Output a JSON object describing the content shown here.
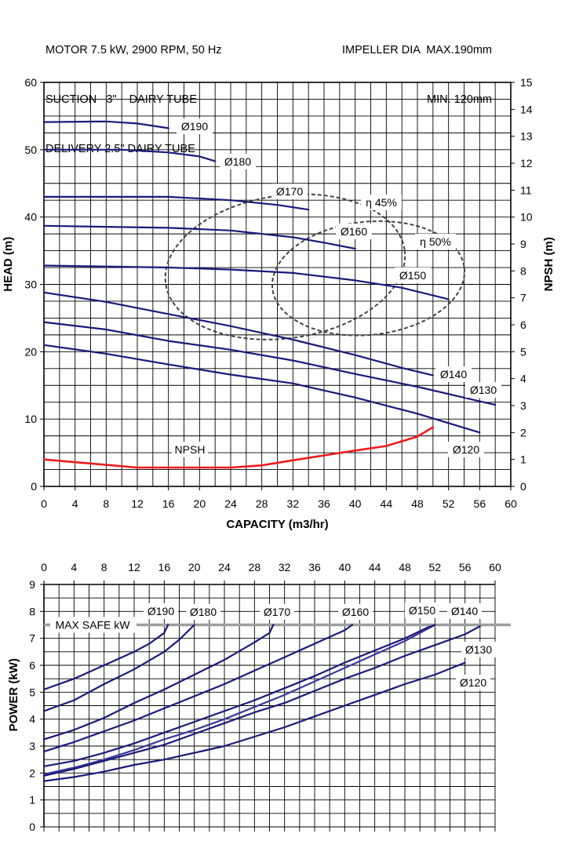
{
  "header": {
    "left": [
      "MOTOR 7.5 kW, 2900 RPM, 50 Hz",
      "SUCTION   3\"    DAIRY TUBE",
      "DELIVERY 2.5\" DAIRY TUBE"
    ],
    "right": [
      "IMPELLER DIA  MAX.190mm",
      "MIN. 120mm"
    ]
  },
  "chart_data": [
    {
      "type": "line",
      "xlabel": "CAPACITY (m3/hr)",
      "ylabel": "HEAD (m)",
      "y2label": "NPSH (m)",
      "xlim": [
        0,
        60
      ],
      "ylim": [
        0,
        60
      ],
      "y2lim": [
        0,
        15
      ],
      "x_ticks": [
        "0",
        "4",
        "8",
        "12",
        "16",
        "20",
        "24",
        "28",
        "32",
        "36",
        "40",
        "44",
        "48",
        "52",
        "56",
        "60"
      ],
      "y_ticks": [
        "0",
        "10",
        "20",
        "30",
        "40",
        "50",
        "60"
      ],
      "y2_ticks": [
        "0",
        "1",
        "2",
        "3",
        "4",
        "5",
        "6",
        "7",
        "8",
        "9",
        "10",
        "11",
        "12",
        "13",
        "14",
        "15"
      ],
      "grid": true,
      "series": [
        {
          "name": "Ø190",
          "color": "#1a1a7a",
          "points": [
            [
              0,
              54.1
            ],
            [
              8,
              54.2
            ],
            [
              12,
              53.9
            ],
            [
              16,
              53.2
            ]
          ]
        },
        {
          "name": "Ø180",
          "color": "#1a1a7a",
          "points": [
            [
              0,
              50.0
            ],
            [
              10,
              50.0
            ],
            [
              16,
              49.6
            ],
            [
              20,
              49.0
            ],
            [
              22,
              48.3
            ]
          ]
        },
        {
          "name": "Ø170",
          "color": "#1a1a7a",
          "points": [
            [
              0,
              43.0
            ],
            [
              16,
              43.0
            ],
            [
              24,
              42.5
            ],
            [
              30,
              41.8
            ],
            [
              34,
              41.1
            ]
          ]
        },
        {
          "name": "Ø160",
          "color": "#1a1a7a",
          "points": [
            [
              0,
              38.7
            ],
            [
              16,
              38.4
            ],
            [
              24,
              38.0
            ],
            [
              32,
              37.0
            ],
            [
              36,
              36.2
            ],
            [
              40,
              35.3
            ]
          ]
        },
        {
          "name": "Ø150",
          "color": "#1a1a7a",
          "points": [
            [
              0,
              32.8
            ],
            [
              16,
              32.5
            ],
            [
              24,
              32.2
            ],
            [
              32,
              31.7
            ],
            [
              40,
              30.6
            ],
            [
              46,
              29.5
            ],
            [
              52,
              27.8
            ]
          ]
        },
        {
          "name": "Ø140",
          "color": "#1a1a7a",
          "points": [
            [
              0,
              28.8
            ],
            [
              8,
              27.4
            ],
            [
              16,
              25.6
            ],
            [
              24,
              23.8
            ],
            [
              32,
              21.8
            ],
            [
              40,
              19.5
            ],
            [
              46,
              17.6
            ],
            [
              50,
              16.5
            ]
          ]
        },
        {
          "name": "Ø130",
          "color": "#1a1a7a",
          "points": [
            [
              0,
              24.4
            ],
            [
              8,
              23.3
            ],
            [
              16,
              21.6
            ],
            [
              24,
              20.3
            ],
            [
              32,
              18.7
            ],
            [
              40,
              16.7
            ],
            [
              48,
              14.8
            ],
            [
              58,
              12.1
            ]
          ]
        },
        {
          "name": "Ø120",
          "color": "#1a1a7a",
          "points": [
            [
              0,
              21.0
            ],
            [
              8,
              19.7
            ],
            [
              16,
              18.1
            ],
            [
              24,
              16.6
            ],
            [
              32,
              15.3
            ],
            [
              40,
              13.2
            ],
            [
              48,
              10.8
            ],
            [
              56,
              8.0
            ]
          ]
        },
        {
          "name": "NPSH",
          "axis": "right",
          "color": "#ee1c1c",
          "points": [
            [
              0,
              1.0
            ],
            [
              6,
              0.85
            ],
            [
              12,
              0.7
            ],
            [
              16,
              0.7
            ],
            [
              24,
              0.7
            ],
            [
              28,
              0.78
            ],
            [
              32,
              0.97
            ],
            [
              36,
              1.15
            ],
            [
              40,
              1.33
            ],
            [
              44,
              1.5
            ],
            [
              48,
              1.85
            ],
            [
              50,
              2.2
            ]
          ]
        }
      ],
      "curve_labels": [
        "Ø190",
        "Ø180",
        "Ø170",
        "Ø160",
        "Ø150",
        "Ø140",
        "Ø130",
        "Ø120",
        "NPSH"
      ],
      "efficiency_contours": [
        {
          "label": "η 45%",
          "cx": 31,
          "cy": 32.6,
          "rx": 15.5,
          "ry": 10.6,
          "rot": -8
        },
        {
          "label": "η 50%",
          "cx": 41.7,
          "cy": 30.9,
          "rx": 12.4,
          "ry": 8.4,
          "rot": -6
        }
      ]
    },
    {
      "type": "line",
      "ylabel": "POWER (kW)",
      "xlim": [
        0,
        60
      ],
      "ylim": [
        0,
        9
      ],
      "x_ticks": [
        "0",
        "4",
        "8",
        "12",
        "16",
        "20",
        "24",
        "28",
        "32",
        "36",
        "40",
        "44",
        "48",
        "52",
        "56",
        "60"
      ],
      "y_ticks": [
        "0",
        "1",
        "2",
        "3",
        "4",
        "5",
        "6",
        "7",
        "8",
        "9"
      ],
      "grid": true,
      "max_safe": {
        "label": "MAX SAFE kW",
        "value": 7.5,
        "color": "#9e9e9e"
      },
      "series": [
        {
          "name": "Ø190",
          "color": "#1a1a7a",
          "points": [
            [
              0,
              5.1
            ],
            [
              4,
              5.5
            ],
            [
              8,
              6.0
            ],
            [
              12,
              6.5
            ],
            [
              14,
              6.8
            ],
            [
              16,
              7.2
            ],
            [
              16.5,
              7.5
            ]
          ]
        },
        {
          "name": "Ø180",
          "color": "#1a1a7a",
          "points": [
            [
              0,
              4.3
            ],
            [
              4,
              4.7
            ],
            [
              8,
              5.3
            ],
            [
              12,
              5.85
            ],
            [
              16,
              6.5
            ],
            [
              18,
              6.95
            ],
            [
              20,
              7.5
            ]
          ]
        },
        {
          "name": "Ø170",
          "color": "#1a1a7a",
          "points": [
            [
              0,
              3.25
            ],
            [
              4,
              3.6
            ],
            [
              8,
              4.05
            ],
            [
              12,
              4.6
            ],
            [
              16,
              5.1
            ],
            [
              20,
              5.65
            ],
            [
              24,
              6.2
            ],
            [
              28,
              6.85
            ],
            [
              30,
              7.2
            ],
            [
              30.5,
              7.5
            ]
          ]
        },
        {
          "name": "Ø160",
          "color": "#1a1a7a",
          "points": [
            [
              0,
              2.8
            ],
            [
              4,
              3.15
            ],
            [
              8,
              3.55
            ],
            [
              12,
              3.95
            ],
            [
              16,
              4.4
            ],
            [
              20,
              4.85
            ],
            [
              24,
              5.3
            ],
            [
              28,
              5.8
            ],
            [
              32,
              6.3
            ],
            [
              36,
              6.8
            ],
            [
              40,
              7.3
            ],
            [
              41,
              7.5
            ]
          ]
        },
        {
          "name": "Ø150",
          "color": "#3a3a9a",
          "points": [
            [
              0,
              1.95
            ],
            [
              4,
              2.2
            ],
            [
              8,
              2.5
            ],
            [
              12,
              2.85
            ],
            [
              16,
              3.25
            ],
            [
              20,
              3.6
            ],
            [
              24,
              4.0
            ],
            [
              28,
              4.45
            ],
            [
              32,
              4.9
            ],
            [
              36,
              5.4
            ],
            [
              40,
              5.9
            ],
            [
              44,
              6.4
            ],
            [
              48,
              6.9
            ],
            [
              51,
              7.35
            ],
            [
              52,
              7.5
            ]
          ]
        },
        {
          "name": "Ø140",
          "color": "#1a1a7a",
          "points": [
            [
              0,
              2.25
            ],
            [
              4,
              2.45
            ],
            [
              8,
              2.75
            ],
            [
              12,
              3.1
            ],
            [
              16,
              3.5
            ],
            [
              20,
              3.9
            ],
            [
              24,
              4.3
            ],
            [
              28,
              4.7
            ],
            [
              32,
              5.15
            ],
            [
              36,
              5.6
            ],
            [
              40,
              6.1
            ],
            [
              44,
              6.55
            ],
            [
              48,
              7.0
            ],
            [
              51,
              7.4
            ],
            [
              52,
              7.5
            ]
          ]
        },
        {
          "name": "Ø130",
          "color": "#1a1a7a",
          "points": [
            [
              0,
              1.9
            ],
            [
              4,
              2.15
            ],
            [
              8,
              2.45
            ],
            [
              12,
              2.75
            ],
            [
              16,
              3.05
            ],
            [
              20,
              3.45
            ],
            [
              24,
              3.85
            ],
            [
              28,
              4.25
            ],
            [
              32,
              4.6
            ],
            [
              36,
              5.05
            ],
            [
              40,
              5.5
            ],
            [
              44,
              5.9
            ],
            [
              48,
              6.35
            ],
            [
              52,
              6.75
            ],
            [
              56,
              7.15
            ],
            [
              58,
              7.45
            ]
          ]
        },
        {
          "name": "Ø120",
          "color": "#1a1a7a",
          "points": [
            [
              0,
              1.7
            ],
            [
              4,
              1.85
            ],
            [
              8,
              2.05
            ],
            [
              12,
              2.3
            ],
            [
              16,
              2.5
            ],
            [
              20,
              2.75
            ],
            [
              24,
              3.0
            ],
            [
              28,
              3.35
            ],
            [
              32,
              3.7
            ],
            [
              36,
              4.1
            ],
            [
              40,
              4.5
            ],
            [
              44,
              4.9
            ],
            [
              48,
              5.3
            ],
            [
              52,
              5.65
            ],
            [
              56,
              6.1
            ]
          ]
        }
      ],
      "curve_labels": [
        "Ø190",
        "Ø180",
        "Ø170",
        "Ø160",
        "Ø150",
        "Ø140",
        "Ø130",
        "Ø120"
      ]
    }
  ]
}
